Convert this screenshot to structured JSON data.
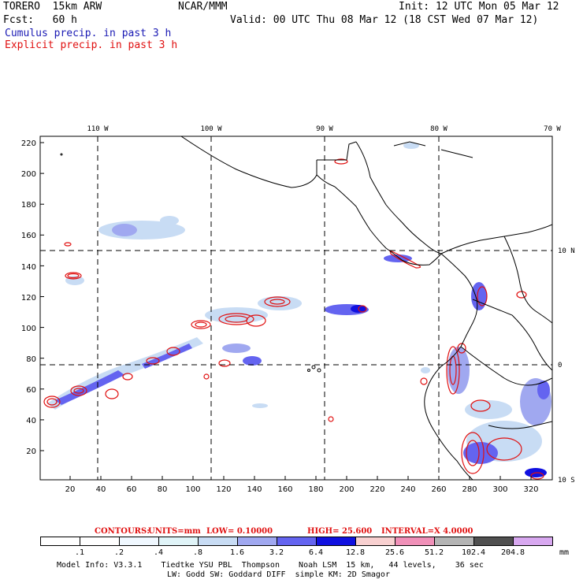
{
  "header": {
    "model": "TORERO  15km ARW",
    "org": "NCAR/MMM",
    "init": "Init: 12 UTC Mon 05 Mar 12",
    "fcst": "Fcst:   60 h",
    "valid": "Valid: 00 UTC Thu 08 Mar 12 (18 CST Wed 07 Mar 12)",
    "field1": "Cumulus precip. in past 3 h",
    "field2": "Explicit precip. in past 3 h",
    "field1_color": "#1a1ab4",
    "field2_color": "#e01010"
  },
  "map": {
    "lon_labels": [
      "110 W",
      "100 W",
      "90 W",
      "80 W",
      "70 W"
    ],
    "lat_labels": [
      "10 N",
      "0",
      "10 S"
    ],
    "y_ticks": [
      "220",
      "200",
      "180",
      "160",
      "140",
      "120",
      "100",
      "80",
      "60",
      "40",
      "20"
    ],
    "x_ticks": [
      "20",
      "40",
      "60",
      "80",
      "100",
      "120",
      "140",
      "160",
      "180",
      "200",
      "220",
      "240",
      "260",
      "280",
      "300",
      "320"
    ]
  },
  "contours": {
    "label": "CONTOURS:",
    "units": "UNITS=mm",
    "low": "LOW= 0.10000",
    "high": "HIGH=  25.600",
    "interval": "INTERVAL=X  4.0000"
  },
  "legend": {
    "labels": [
      ".1",
      ".2",
      ".4",
      ".8",
      "1.6",
      "3.2",
      "6.4",
      "12.8",
      "25.6",
      "51.2",
      "102.4",
      "204.8"
    ],
    "unit": "mm",
    "colors": [
      "#ffffff",
      "#ffffff",
      "#f0f8ff",
      "#e0f4f8",
      "#c8dcf4",
      "#a0a8f0",
      "#6464f0",
      "#1010e0",
      "#f8d0d0",
      "#f090b8",
      "#b4b4b4",
      "#505050",
      "#d8a8f0"
    ]
  },
  "footer": {
    "line1": "Model Info: V3.3.1    Tiedtke YSU PBL  Thompson    Noah LSM  15 km,   44 levels,    36 sec",
    "line2": "LW: Godd SW: Goddard DIFF  simple KM: 2D Smagor"
  }
}
